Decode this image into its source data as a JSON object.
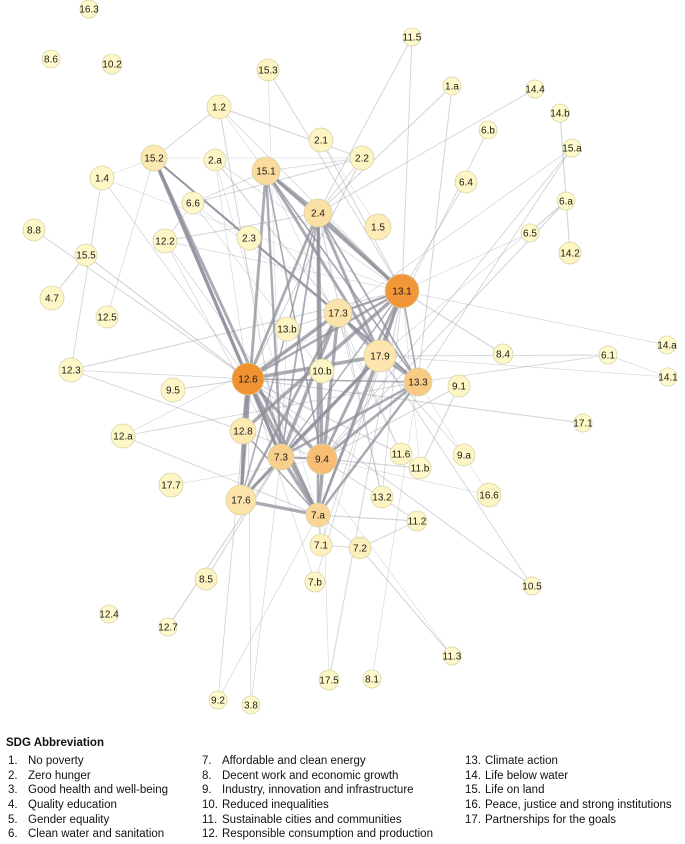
{
  "legend": {
    "title": "SDG  Abbreviation",
    "items": [
      {
        "num": "1.",
        "label": "No poverty"
      },
      {
        "num": "2.",
        "label": "Zero hunger"
      },
      {
        "num": "3.",
        "label": "Good health and well-being"
      },
      {
        "num": "4.",
        "label": "Quality education"
      },
      {
        "num": "5.",
        "label": "Gender equality"
      },
      {
        "num": "6.",
        "label": "Clean water and sanitation"
      },
      {
        "num": "7.",
        "label": "Affordable and clean energy"
      },
      {
        "num": "8.",
        "label": "Decent work and economic growth"
      },
      {
        "num": "9.",
        "label": "Industry, innovation and infrastructure"
      },
      {
        "num": "10.",
        "label": "Reduced inequalities"
      },
      {
        "num": "11.",
        "label": "Sustainable cities and communities"
      },
      {
        "num": "12.",
        "label": "Responsible consumption and production"
      },
      {
        "num": "13.",
        "label": "Climate action"
      },
      {
        "num": "14.",
        "label": "Life below water"
      },
      {
        "num": "15.",
        "label": "Life on land"
      },
      {
        "num": "16.",
        "label": "Peace, justice and strong institutions"
      },
      {
        "num": "17.",
        "label": "Partnerships for the goals"
      }
    ]
  },
  "colors": {
    "edge": "#8f8f9b",
    "node_stroke": "#d7d2a8",
    "heat_low": "#fffccf",
    "heat_high": "#f08c28"
  },
  "network": {
    "nodes": [
      {
        "id": "16.3",
        "heat": 0.02
      },
      {
        "id": "11.5",
        "heat": 0.02
      },
      {
        "id": "8.6",
        "heat": 0.02
      },
      {
        "id": "10.2",
        "heat": 0.05
      },
      {
        "id": "15.3",
        "heat": 0.08
      },
      {
        "id": "1.a",
        "heat": 0.03
      },
      {
        "id": "14.4",
        "heat": 0.02
      },
      {
        "id": "1.2",
        "heat": 0.07
      },
      {
        "id": "14.b",
        "heat": 0.02
      },
      {
        "id": "6.b",
        "heat": 0.02
      },
      {
        "id": "2.1",
        "heat": 0.07
      },
      {
        "id": "15.a",
        "heat": 0.02
      },
      {
        "id": "15.2",
        "heat": 0.18
      },
      {
        "id": "2.a",
        "heat": 0.05
      },
      {
        "id": "15.1",
        "heat": 0.3
      },
      {
        "id": "2.2",
        "heat": 0.08
      },
      {
        "id": "1.4",
        "heat": 0.05
      },
      {
        "id": "6.4",
        "heat": 0.05
      },
      {
        "id": "6.6",
        "heat": 0.05
      },
      {
        "id": "2.4",
        "heat": 0.25
      },
      {
        "id": "6.a",
        "heat": 0.02
      },
      {
        "id": "1.5",
        "heat": 0.14
      },
      {
        "id": "8.8",
        "heat": 0.04
      },
      {
        "id": "12.2",
        "heat": 0.05
      },
      {
        "id": "2.3",
        "heat": 0.05
      },
      {
        "id": "6.5",
        "heat": 0.02
      },
      {
        "id": "14.2",
        "heat": 0.06
      },
      {
        "id": "15.5",
        "heat": 0.03
      },
      {
        "id": "13.1",
        "heat": 0.9
      },
      {
        "id": "4.7",
        "heat": 0.05
      },
      {
        "id": "17.3",
        "heat": 0.22
      },
      {
        "id": "12.5",
        "heat": 0.03
      },
      {
        "id": "13.b",
        "heat": 0.07
      },
      {
        "id": "14.a",
        "heat": 0.02
      },
      {
        "id": "8.4",
        "heat": 0.04
      },
      {
        "id": "6.1",
        "heat": 0.02
      },
      {
        "id": "17.9",
        "heat": 0.2
      },
      {
        "id": "12.3",
        "heat": 0.04
      },
      {
        "id": "12.6",
        "heat": 0.95
      },
      {
        "id": "14.1",
        "heat": 0.02
      },
      {
        "id": "13.3",
        "heat": 0.45
      },
      {
        "id": "9.5",
        "heat": 0.05
      },
      {
        "id": "10.b",
        "heat": 0.06
      },
      {
        "id": "9.1",
        "heat": 0.06
      },
      {
        "id": "17.1",
        "heat": 0.03
      },
      {
        "id": "12.a",
        "heat": 0.04
      },
      {
        "id": "12.8",
        "heat": 0.18
      },
      {
        "id": "7.3",
        "heat": 0.4
      },
      {
        "id": "9.4",
        "heat": 0.55
      },
      {
        "id": "11.6",
        "heat": 0.06
      },
      {
        "id": "9.a",
        "heat": 0.06
      },
      {
        "id": "11.b",
        "heat": 0.04
      },
      {
        "id": "17.7",
        "heat": 0.06
      },
      {
        "id": "17.6",
        "heat": 0.22
      },
      {
        "id": "16.6",
        "heat": 0.06
      },
      {
        "id": "13.2",
        "heat": 0.06
      },
      {
        "id": "7.a",
        "heat": 0.35
      },
      {
        "id": "11.2",
        "heat": 0.05
      },
      {
        "id": "7.1",
        "heat": 0.1
      },
      {
        "id": "7.2",
        "heat": 0.12
      },
      {
        "id": "8.5",
        "heat": 0.08
      },
      {
        "id": "7.b",
        "heat": 0.05
      },
      {
        "id": "10.5",
        "heat": 0.02
      },
      {
        "id": "12.4",
        "heat": 0.02
      },
      {
        "id": "12.7",
        "heat": 0.02
      },
      {
        "id": "11.3",
        "heat": 0.02
      },
      {
        "id": "17.5",
        "heat": 0.03
      },
      {
        "id": "8.1",
        "heat": 0.02
      },
      {
        "id": "9.2",
        "heat": 0.02
      },
      {
        "id": "3.8",
        "heat": 0.02
      }
    ]
  }
}
